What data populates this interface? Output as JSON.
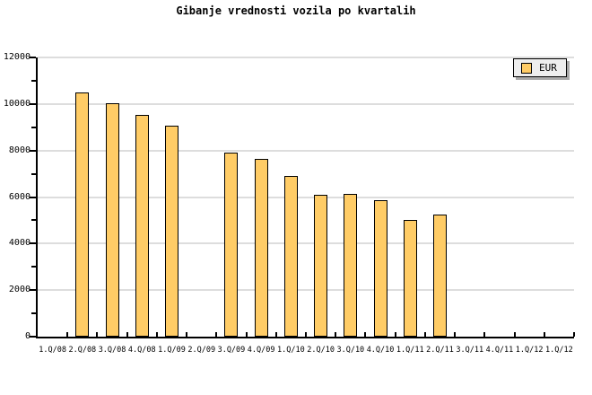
{
  "chart_data": {
    "type": "bar",
    "title": "Gibanje vrednosti vozila po kvartalih",
    "categories": [
      "1.Q/08",
      "2.Q/08",
      "3.Q/08",
      "4.Q/08",
      "1.Q/09",
      "2.Q/09",
      "3.Q/09",
      "4.Q/09",
      "1.Q/10",
      "2.Q/10",
      "3.Q/10",
      "4.Q/10",
      "1.Q/11",
      "2.Q/11",
      "3.Q/11",
      "4.Q/11",
      "1.Q/12",
      "1.Q/12"
    ],
    "series": [
      {
        "name": "EUR",
        "values": [
          null,
          10500,
          10050,
          9550,
          9050,
          null,
          7900,
          7650,
          6900,
          6100,
          6150,
          5850,
          5000,
          5250,
          null,
          null,
          null,
          null
        ]
      }
    ],
    "xlabel": "",
    "ylabel": "",
    "ylim": [
      0,
      12000
    ],
    "y_major_step": 2000,
    "y_minor_step": 1000,
    "y_tick_labels": [
      "0",
      "2000",
      "4000",
      "6000",
      "8000",
      "10000",
      "12000"
    ],
    "grid": "horizontal-major",
    "legend": {
      "label": "EUR",
      "position": "top-right"
    },
    "colors": {
      "bar_fill": "#FFCC66",
      "bar_border": "#000000",
      "grid": "#DDDDDD",
      "axis": "#000000",
      "text": "#000000",
      "legend_bg": "#EEEEEE",
      "legend_border": "#000000",
      "legend_shadow": "#A9A9A9",
      "background": "#FFFFFF"
    }
  }
}
